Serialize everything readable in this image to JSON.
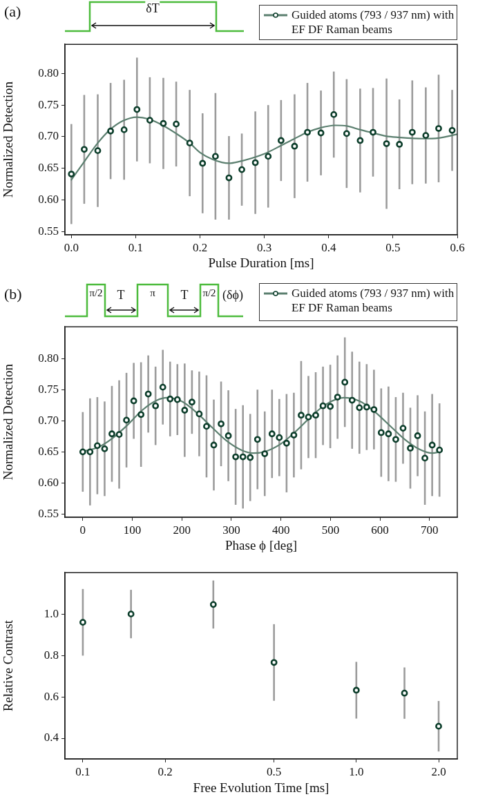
{
  "chart_data": [
    {
      "type": "scatter",
      "title": "(a)",
      "xlabel": "Pulse Duration [ms]",
      "ylabel": "Normalized Detection",
      "annotations": [
        "δT"
      ],
      "legend": "top right",
      "marker": "circle",
      "grid": false,
      "xlim": [
        -0.01,
        0.6
      ],
      "xticks": [
        {
          "value": 0,
          "label": "0.0"
        },
        0.1,
        0.2,
        0.3,
        0.4,
        0.5,
        0.6
      ],
      "ylim": [
        0.545,
        0.846
      ],
      "yticks": [
        0.55,
        {
          "value": 0.6,
          "label": "0.60"
        },
        0.65,
        {
          "value": 0.7,
          "label": "0.70"
        },
        0.75,
        {
          "value": 0.8,
          "label": "0.80"
        }
      ],
      "series": [
        {
          "type": "scatter",
          "name": "Guided atoms (793 / 937 nm) with EF DF Raman beams",
          "color": "#0b3d2a",
          "x": [
            0,
            0.02,
            0.041,
            0.061,
            0.082,
            0.102,
            0.122,
            0.143,
            0.163,
            0.184,
            0.204,
            0.224,
            0.245,
            0.265,
            0.286,
            0.306,
            0.326,
            0.347,
            0.367,
            0.388,
            0.408,
            0.428,
            0.449,
            0.469,
            0.49,
            0.51,
            0.53,
            0.551,
            0.571,
            0.592
          ],
          "values": [
            0.641,
            0.68,
            0.678,
            0.709,
            0.711,
            0.743,
            0.726,
            0.721,
            0.72,
            0.69,
            0.658,
            0.669,
            0.635,
            0.648,
            0.659,
            0.669,
            0.694,
            0.685,
            0.707,
            0.706,
            0.735,
            0.705,
            0.694,
            0.707,
            0.689,
            0.688,
            0.707,
            0.702,
            0.713,
            0.71
          ],
          "errors": [
            0.079,
            0.086,
            0.089,
            0.076,
            0.079,
            0.082,
            0.068,
            0.072,
            0.067,
            0.084,
            0.079,
            0.1,
            0.066,
            0.057,
            0.081,
            0.081,
            0.064,
            0.082,
            0.078,
            0.067,
            0.068,
            0.086,
            0.082,
            0.07,
            0.103,
            0.071,
            0.082,
            0.076,
            0.085,
            0.064
          ]
        },
        {
          "type": "line",
          "marker": "none",
          "color": "#5b7f6f",
          "x": [
            0,
            0.021,
            0.041,
            0.06,
            0.08,
            0.102,
            0.12,
            0.142,
            0.163,
            0.184,
            0.2,
            0.22,
            0.245,
            0.258,
            0.3,
            0.326,
            0.347,
            0.367,
            0.387,
            0.41,
            0.428,
            0.449,
            0.469,
            0.489,
            0.509,
            0.547,
            0.571,
            0.6
          ],
          "values": [
            0.632,
            0.662,
            0.69,
            0.711,
            0.725,
            0.731,
            0.728,
            0.718,
            0.705,
            0.69,
            0.675,
            0.664,
            0.658,
            0.66,
            0.673,
            0.686,
            0.697,
            0.707,
            0.714,
            0.718,
            0.717,
            0.711,
            0.706,
            0.701,
            0.699,
            0.697,
            0.698,
            0.704
          ]
        }
      ]
    },
    {
      "type": "scatter",
      "title": "(b)",
      "xlabel": "Phase ϕ [deg]",
      "ylabel": "Normalized Detection",
      "annotations": [
        "π/2",
        "T",
        "π",
        "T",
        "π/2",
        "(δϕ)"
      ],
      "legend": "top right",
      "marker": "circle",
      "grid": false,
      "xlim": [
        -36,
        756
      ],
      "xticks": [
        0,
        100,
        200,
        300,
        400,
        500,
        600,
        700
      ],
      "ylim": [
        0.545,
        0.851
      ],
      "yticks": [
        0.55,
        {
          "value": 0.6,
          "label": "0.60"
        },
        0.65,
        {
          "value": 0.7,
          "label": "0.70"
        },
        0.75,
        {
          "value": 0.8,
          "label": "0.80"
        }
      ],
      "series": [
        {
          "type": "scatter",
          "name": "Guided atoms (793 / 937 nm) with EF DF Raman beams",
          "color": "#0b3d2a",
          "x": [
            0,
            14.7,
            29.4,
            44.1,
            58.8,
            73.5,
            88.2,
            102.9,
            117.6,
            132.2,
            146.9,
            161.6,
            176.3,
            191,
            205.7,
            220.4,
            235.1,
            249.8,
            264.5,
            279.2,
            293.9,
            308.6,
            323.3,
            338,
            352.7,
            367.3,
            382,
            396.7,
            411.4,
            426.1,
            440.8,
            455.5,
            470.2,
            484.9,
            499.6,
            514.3,
            529,
            543.7,
            558.4,
            573.1,
            587.8,
            602.4,
            617.1,
            631.8,
            646.5,
            661.2,
            675.9,
            690.6,
            705.3,
            720
          ],
          "values": [
            0.65,
            0.65,
            0.66,
            0.655,
            0.679,
            0.678,
            0.701,
            0.732,
            0.71,
            0.743,
            0.724,
            0.754,
            0.735,
            0.734,
            0.717,
            0.73,
            0.711,
            0.691,
            0.661,
            0.695,
            0.676,
            0.642,
            0.642,
            0.641,
            0.67,
            0.647,
            0.679,
            0.673,
            0.664,
            0.677,
            0.709,
            0.706,
            0.709,
            0.724,
            0.723,
            0.738,
            0.762,
            0.733,
            0.721,
            0.722,
            0.718,
            0.681,
            0.679,
            0.67,
            0.688,
            0.656,
            0.676,
            0.64,
            0.661,
            0.653
          ],
          "errors": [
            0.064,
            0.086,
            0.078,
            0.076,
            0.077,
            0.087,
            0.076,
            0.061,
            0.084,
            0.062,
            0.063,
            0.06,
            0.06,
            0.057,
            0.075,
            0.051,
            0.068,
            0.082,
            0.073,
            0.068,
            0.073,
            0.077,
            0.083,
            0.07,
            0.08,
            0.068,
            0.071,
            0.062,
            0.079,
            0.068,
            0.087,
            0.066,
            0.069,
            0.063,
            0.067,
            0.067,
            0.072,
            0.078,
            0.074,
            0.069,
            0.064,
            0.071,
            0.076,
            0.068,
            0.057,
            0.065,
            0.065,
            0.075,
            0.082,
            0.075
          ]
        },
        {
          "type": "line",
          "marker": "none",
          "color": "#5b7f6f",
          "x": [
            0,
            30,
            60,
            90,
            120,
            150,
            170,
            200,
            230,
            260,
            290,
            320,
            345,
            370,
            400,
            430,
            460,
            490,
            527,
            560,
            590,
            620,
            650,
            680,
            706,
            720
          ],
          "values": [
            0.651,
            0.657,
            0.672,
            0.693,
            0.717,
            0.733,
            0.737,
            0.731,
            0.713,
            0.69,
            0.668,
            0.653,
            0.648,
            0.651,
            0.663,
            0.683,
            0.706,
            0.726,
            0.737,
            0.731,
            0.714,
            0.692,
            0.67,
            0.654,
            0.648,
            0.65
          ]
        }
      ]
    },
    {
      "type": "scatter",
      "xlabel": "Free Evolution Time [ms]",
      "ylabel": "Relative Contrast",
      "log": "x",
      "marker": "circle",
      "grid": false,
      "xlim": [
        0.086,
        2.34
      ],
      "xticks": [
        0.1,
        0.2,
        0.5,
        {
          "value": 1,
          "label": "1.0"
        },
        {
          "value": 2,
          "label": "2.0"
        }
      ],
      "ylim": [
        0.3,
        1.2
      ],
      "yticks": [
        0.4,
        0.6,
        0.8,
        {
          "value": 1,
          "label": "1.0"
        }
      ],
      "series": [
        {
          "type": "scatter",
          "color": "#0b3d2a",
          "x": [
            0.1,
            0.15,
            0.3,
            0.5,
            1,
            1.5,
            2
          ],
          "values": [
            0.96,
            1.0,
            1.046,
            0.766,
            0.632,
            0.618,
            0.458
          ],
          "errors": [
            0.161,
            0.117,
            0.116,
            0.185,
            0.137,
            0.124,
            0.122
          ]
        }
      ]
    }
  ]
}
